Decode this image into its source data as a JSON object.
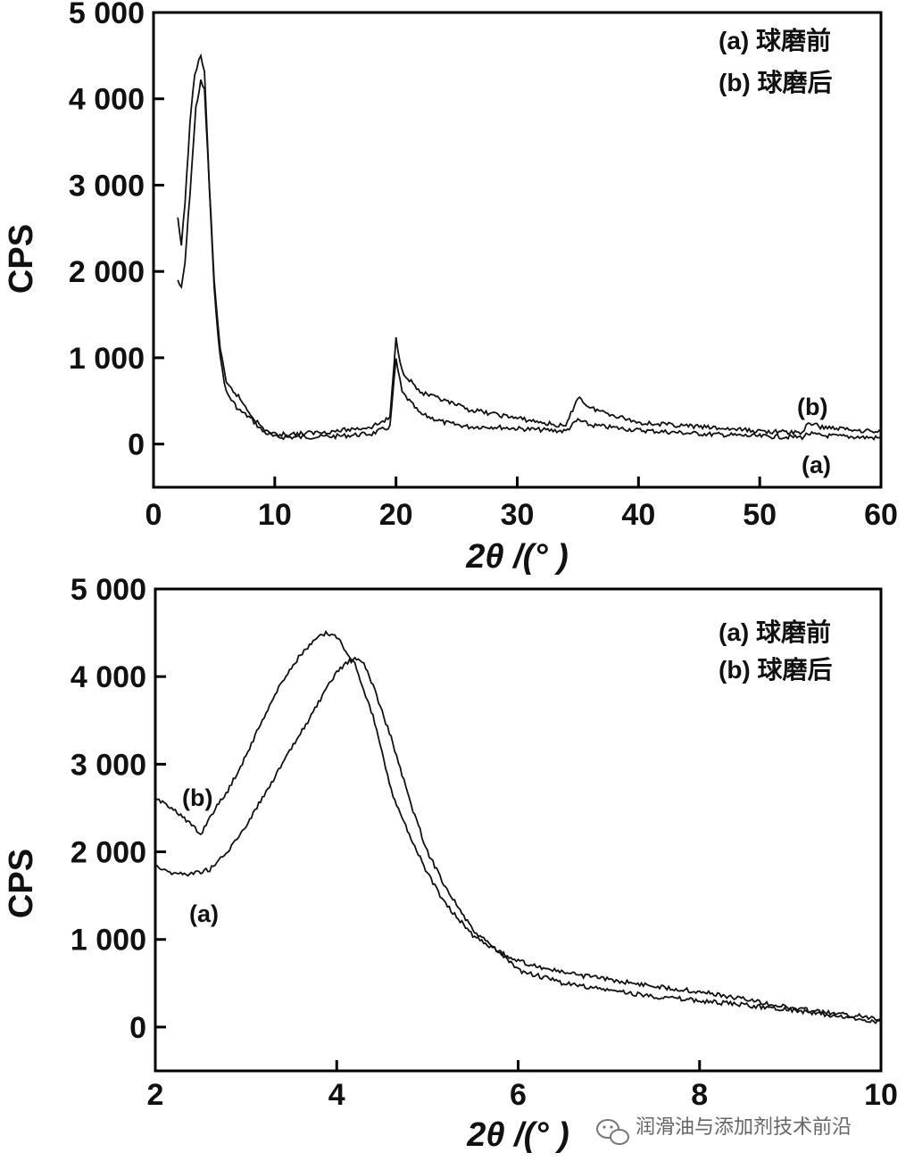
{
  "watermark": "润滑油与添加剂技术前沿",
  "chart_data": [
    {
      "type": "line",
      "xlabel": "2θ /(°  )",
      "ylabel": "CPS",
      "xlim": [
        0,
        60
      ],
      "ylim": [
        -500,
        5000
      ],
      "x_ticks": [
        0,
        10,
        20,
        30,
        40,
        50,
        60
      ],
      "x_tick_labels": [
        "0",
        "10",
        "20",
        "30",
        "40",
        "50",
        "60"
      ],
      "y_ticks": [
        0,
        1000,
        2000,
        3000,
        4000,
        5000
      ],
      "y_tick_labels": [
        "0",
        "1 000",
        "2 000",
        "3 000",
        "4 000",
        "5 000"
      ],
      "legend": [
        "(a) 球磨前",
        "(b) 球磨后"
      ],
      "legend_position": "top-right",
      "annotations": [
        "(b)",
        "(a)"
      ],
      "series": [
        {
          "name": "(a) 球磨前",
          "x": [
            2,
            2.3,
            2.6,
            3,
            3.5,
            3.9,
            4.2,
            4.6,
            5,
            5.5,
            6,
            7,
            8,
            9,
            10,
            12,
            15,
            18,
            19.5,
            20,
            20.5,
            22,
            24,
            26,
            28,
            30,
            34,
            35,
            36,
            40,
            45,
            50,
            53.5,
            54,
            55,
            60
          ],
          "y": [
            1900,
            1800,
            2100,
            2900,
            3900,
            4200,
            4100,
            3000,
            1800,
            1000,
            600,
            400,
            300,
            150,
            80,
            80,
            90,
            120,
            200,
            980,
            600,
            350,
            250,
            200,
            200,
            180,
            150,
            280,
            220,
            160,
            120,
            90,
            80,
            120,
            100,
            70
          ]
        },
        {
          "name": "(b) 球磨后",
          "x": [
            2,
            2.3,
            2.6,
            3,
            3.4,
            3.9,
            4.2,
            4.6,
            5,
            5.5,
            6,
            7,
            8,
            9,
            10,
            12,
            15,
            18,
            19.5,
            20,
            20.5,
            22,
            24,
            26,
            28,
            30,
            34,
            35,
            36,
            40,
            45,
            50,
            53.5,
            54,
            55,
            60
          ],
          "y": [
            2600,
            2300,
            2800,
            3700,
            4300,
            4500,
            4300,
            3000,
            1900,
            1100,
            700,
            550,
            350,
            180,
            110,
            120,
            150,
            200,
            300,
            1220,
            850,
            600,
            500,
            400,
            350,
            300,
            200,
            550,
            420,
            250,
            200,
            150,
            130,
            250,
            200,
            140
          ]
        }
      ]
    },
    {
      "type": "line",
      "xlabel": "2θ /(°  )",
      "ylabel": "CPS",
      "xlim": [
        2,
        10
      ],
      "ylim": [
        -500,
        5000
      ],
      "x_ticks": [
        2,
        4,
        6,
        8,
        10
      ],
      "x_tick_labels": [
        "2",
        "4",
        "6",
        "8",
        "10"
      ],
      "y_ticks": [
        0,
        1000,
        2000,
        3000,
        4000,
        5000
      ],
      "y_tick_labels": [
        "0",
        "1 000",
        "2 000",
        "3 000",
        "4 000",
        "5 000"
      ],
      "legend": [
        "(a) 球磨前",
        "(b) 球磨后"
      ],
      "legend_position": "top-right",
      "annotations": [
        "(b)",
        "(a)"
      ],
      "series": [
        {
          "name": "(a) 球磨前",
          "x": [
            2,
            2.2,
            2.4,
            2.6,
            2.8,
            3,
            3.2,
            3.4,
            3.6,
            3.8,
            4,
            4.1,
            4.2,
            4.3,
            4.4,
            4.6,
            4.8,
            5,
            5.2,
            5.5,
            5.8,
            6,
            6.5,
            7,
            7.5,
            8,
            8.5,
            9,
            9.5,
            10
          ],
          "y": [
            1850,
            1750,
            1750,
            1800,
            2000,
            2300,
            2650,
            3000,
            3350,
            3700,
            4050,
            4150,
            4200,
            4150,
            3900,
            3300,
            2600,
            2000,
            1600,
            1100,
            850,
            650,
            500,
            420,
            350,
            300,
            250,
            200,
            120,
            60
          ]
        },
        {
          "name": "(b) 球磨后",
          "x": [
            2,
            2.2,
            2.4,
            2.5,
            2.6,
            2.8,
            3,
            3.2,
            3.4,
            3.6,
            3.8,
            3.9,
            4,
            4.1,
            4.2,
            4.4,
            4.6,
            4.8,
            5,
            5.2,
            5.5,
            5.8,
            6,
            6.5,
            7,
            7.5,
            8,
            8.5,
            9,
            9.5,
            10
          ],
          "y": [
            2600,
            2500,
            2300,
            2200,
            2400,
            2700,
            3100,
            3550,
            3950,
            4250,
            4450,
            4500,
            4450,
            4300,
            4150,
            3550,
            2700,
            2200,
            1750,
            1400,
            1050,
            850,
            750,
            620,
            540,
            470,
            400,
            320,
            220,
            150,
            100
          ]
        }
      ]
    }
  ]
}
